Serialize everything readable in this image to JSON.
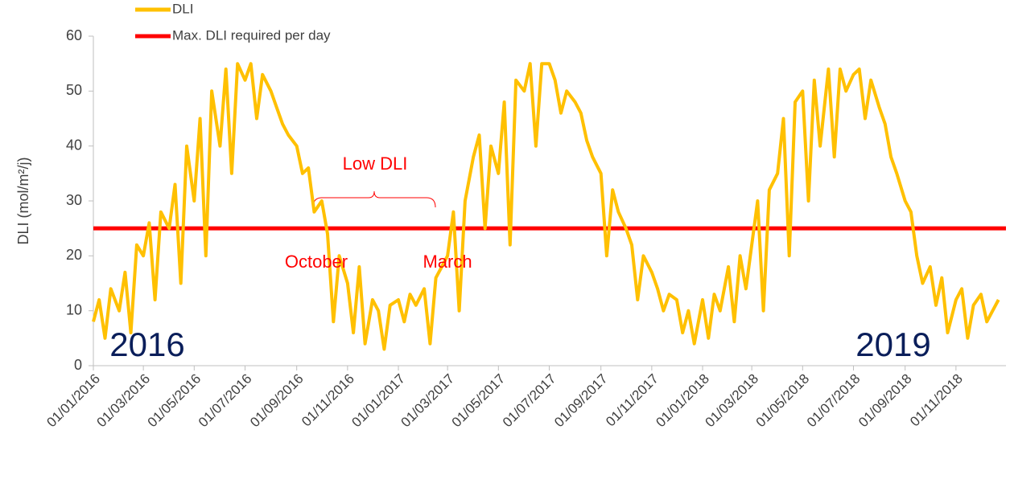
{
  "chart_data": {
    "type": "line",
    "y_label": "DLI (mol/m²/j)",
    "x": [
      "01/01/2016",
      "08/01/2016",
      "15/01/2016",
      "22/01/2016",
      "01/02/2016",
      "08/02/2016",
      "15/02/2016",
      "22/02/2016",
      "01/03/2016",
      "08/03/2016",
      "15/03/2016",
      "22/03/2016",
      "01/04/2016",
      "08/04/2016",
      "15/04/2016",
      "22/04/2016",
      "01/05/2016",
      "08/05/2016",
      "15/05/2016",
      "22/05/2016",
      "01/06/2016",
      "08/06/2016",
      "15/06/2016",
      "22/06/2016",
      "01/07/2016",
      "08/07/2016",
      "15/07/2016",
      "22/07/2016",
      "01/08/2016",
      "08/08/2016",
      "15/08/2016",
      "22/08/2016",
      "01/09/2016",
      "08/09/2016",
      "15/09/2016",
      "22/09/2016",
      "01/10/2016",
      "08/10/2016",
      "15/10/2016",
      "22/10/2016",
      "01/11/2016",
      "08/11/2016",
      "15/11/2016",
      "22/11/2016",
      "01/12/2016",
      "08/12/2016",
      "15/12/2016",
      "22/12/2016",
      "01/01/2017",
      "08/01/2017",
      "15/01/2017",
      "22/01/2017",
      "01/02/2017",
      "08/02/2017",
      "15/02/2017",
      "22/02/2017",
      "01/03/2017",
      "08/03/2017",
      "15/03/2017",
      "22/03/2017",
      "01/04/2017",
      "08/04/2017",
      "15/04/2017",
      "22/04/2017",
      "01/05/2017",
      "08/05/2017",
      "15/05/2017",
      "22/05/2017",
      "01/06/2017",
      "08/06/2017",
      "15/06/2017",
      "22/06/2017",
      "01/07/2017",
      "08/07/2017",
      "15/07/2017",
      "22/07/2017",
      "01/08/2017",
      "08/08/2017",
      "15/08/2017",
      "22/08/2017",
      "01/09/2017",
      "08/09/2017",
      "15/09/2017",
      "22/09/2017",
      "01/10/2017",
      "08/10/2017",
      "15/10/2017",
      "22/10/2017",
      "01/11/2017",
      "08/11/2017",
      "15/11/2017",
      "22/11/2017",
      "01/12/2017",
      "08/12/2017",
      "15/12/2017",
      "22/12/2017",
      "01/01/2018",
      "08/01/2018",
      "15/01/2018",
      "22/01/2018",
      "01/02/2018",
      "08/02/2018",
      "15/02/2018",
      "22/02/2018",
      "01/03/2018",
      "08/03/2018",
      "15/03/2018",
      "22/03/2018",
      "01/04/2018",
      "08/04/2018",
      "15/04/2018",
      "22/04/2018",
      "01/05/2018",
      "08/05/2018",
      "15/05/2018",
      "22/05/2018",
      "01/06/2018",
      "08/06/2018",
      "15/06/2018",
      "22/06/2018",
      "01/07/2018",
      "08/07/2018",
      "15/07/2018",
      "22/07/2018",
      "01/08/2018",
      "08/08/2018",
      "15/08/2018",
      "22/08/2018",
      "01/09/2018",
      "08/09/2018",
      "15/09/2018",
      "22/09/2018",
      "01/10/2018",
      "08/10/2018",
      "15/10/2018",
      "22/10/2018",
      "01/11/2018",
      "08/11/2018",
      "15/11/2018",
      "22/11/2018",
      "01/12/2018",
      "08/12/2018",
      "15/12/2018",
      "22/12/2018"
    ],
    "series": [
      {
        "name": "DLI",
        "color": "#ffc000",
        "values": [
          8,
          12,
          5,
          14,
          10,
          17,
          6,
          22,
          20,
          26,
          12,
          28,
          25,
          33,
          15,
          40,
          30,
          45,
          20,
          50,
          40,
          54,
          35,
          55,
          52,
          55,
          45,
          53,
          50,
          47,
          44,
          42,
          40,
          35,
          36,
          28,
          30,
          24,
          8,
          20,
          15,
          6,
          18,
          4,
          12,
          10,
          3,
          11,
          12,
          8,
          13,
          11,
          14,
          4,
          16,
          18,
          20,
          28,
          10,
          30,
          38,
          42,
          25,
          40,
          35,
          48,
          22,
          52,
          50,
          55,
          40,
          55,
          55,
          52,
          46,
          50,
          48,
          46,
          41,
          38,
          35,
          20,
          32,
          28,
          25,
          22,
          12,
          20,
          17,
          14,
          10,
          13,
          12,
          6,
          10,
          4,
          12,
          5,
          13,
          10,
          18,
          8,
          20,
          14,
          22,
          30,
          10,
          32,
          35,
          45,
          20,
          48,
          50,
          30,
          52,
          40,
          54,
          38,
          54,
          50,
          53,
          54,
          45,
          52,
          47,
          44,
          38,
          35,
          30,
          28,
          20,
          15,
          18,
          11,
          16,
          6,
          12,
          14,
          5,
          11,
          13,
          8,
          10,
          12
        ]
      }
    ],
    "reference_line": {
      "name": "Max. DLI required per day",
      "value": 25,
      "color": "#ff0000"
    },
    "xlim": [
      "01/01/2016",
      "31/12/2018"
    ],
    "xticks": [
      "01/01/2016",
      "01/03/2016",
      "01/05/2016",
      "01/07/2016",
      "01/09/2016",
      "01/11/2016",
      "01/01/2017",
      "01/03/2017",
      "01/05/2017",
      "01/07/2017",
      "01/09/2017",
      "01/11/2017",
      "01/01/2018",
      "01/03/2018",
      "01/05/2018",
      "01/07/2018",
      "01/09/2018",
      "01/11/2018"
    ],
    "ylim": [
      0,
      60
    ],
    "yticks": [
      0,
      10,
      20,
      30,
      40,
      50,
      60
    ],
    "annotations": [
      "Low DLI",
      "October",
      "March",
      "2016",
      "2019"
    ]
  }
}
